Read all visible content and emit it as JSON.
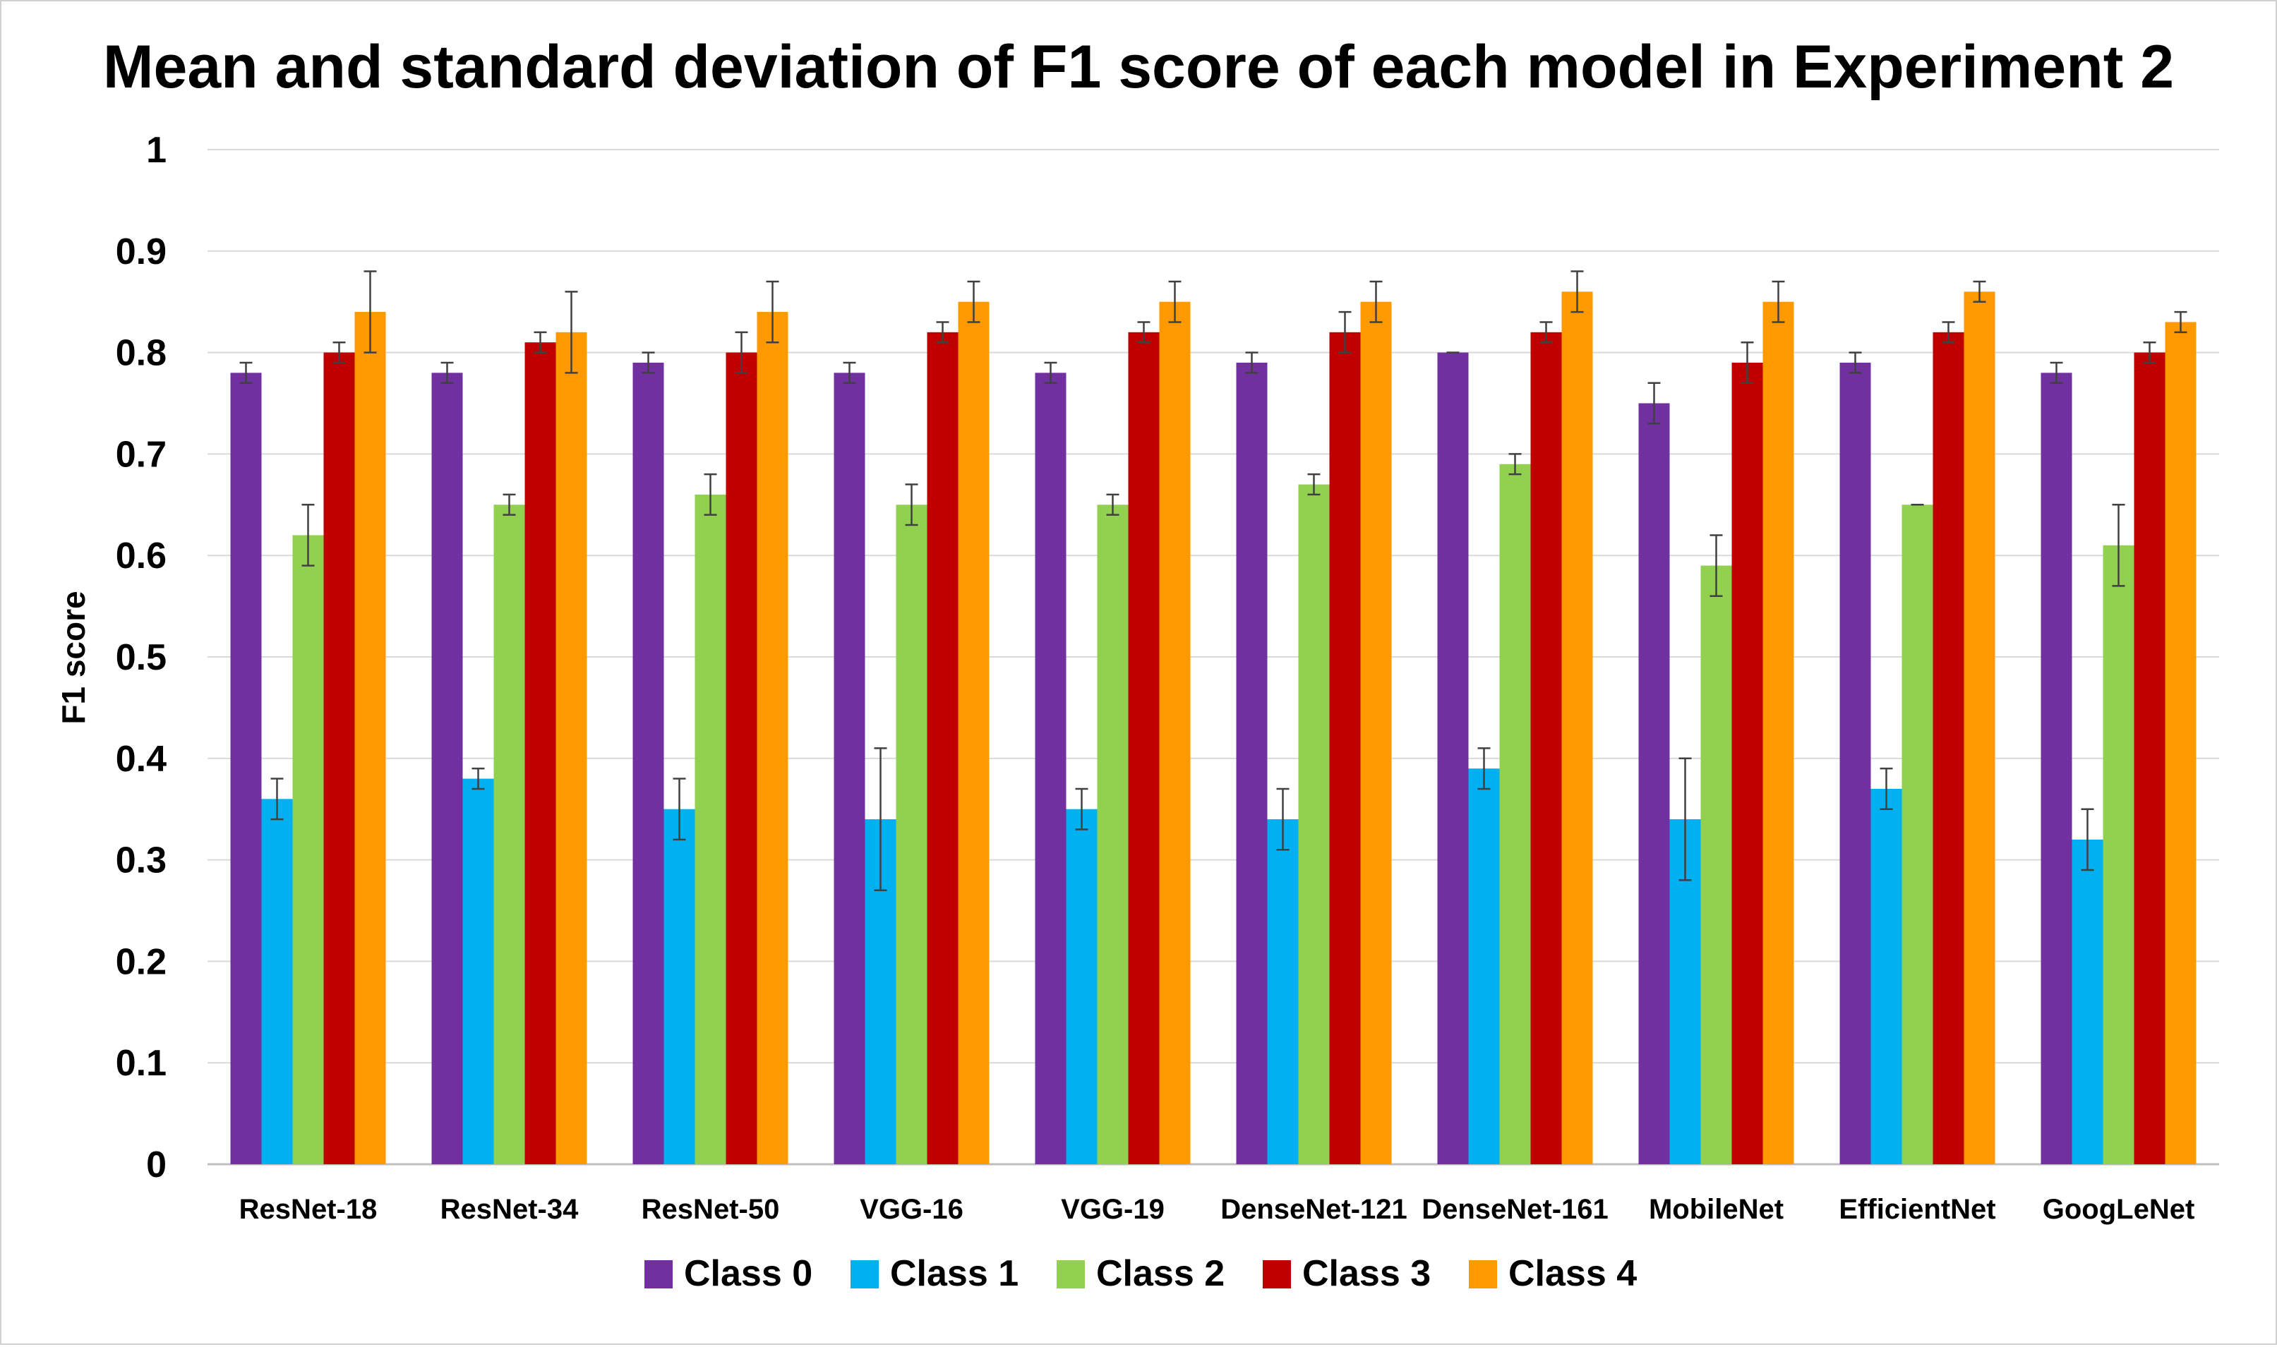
{
  "chart_data": {
    "type": "bar",
    "title": "Mean and standard deviation of F1 score of each model in Experiment 2",
    "xlabel": "",
    "ylabel": "F1 score",
    "ylim": [
      0,
      1
    ],
    "yticks": [
      0,
      0.1,
      0.2,
      0.3,
      0.4,
      0.5,
      0.6,
      0.7,
      0.8,
      0.9,
      1
    ],
    "ytick_labels": [
      "0",
      "0.1",
      "0.2",
      "0.3",
      "0.4",
      "0.5",
      "0.6",
      "0.7",
      "0.8",
      "0.9",
      "1"
    ],
    "grid": true,
    "legend_position": "bottom",
    "categories": [
      "ResNet-18",
      "ResNet-34",
      "ResNet-50",
      "VGG-16",
      "VGG-19",
      "DenseNet-121",
      "DenseNet-161",
      "MobileNet",
      "EfficientNet",
      "GoogLeNet"
    ],
    "series": [
      {
        "name": "Class 0",
        "color": "#7030A0",
        "values": [
          0.78,
          0.78,
          0.79,
          0.78,
          0.78,
          0.79,
          0.8,
          0.75,
          0.79,
          0.78
        ],
        "errors": [
          0.01,
          0.01,
          0.01,
          0.01,
          0.01,
          0.01,
          0.0,
          0.02,
          0.01,
          0.01
        ]
      },
      {
        "name": "Class 1",
        "color": "#00B0F0",
        "values": [
          0.36,
          0.38,
          0.35,
          0.34,
          0.35,
          0.34,
          0.39,
          0.34,
          0.37,
          0.32
        ],
        "errors": [
          0.02,
          0.01,
          0.03,
          0.07,
          0.02,
          0.03,
          0.02,
          0.06,
          0.02,
          0.03
        ]
      },
      {
        "name": "Class 2",
        "color": "#92D050",
        "values": [
          0.62,
          0.65,
          0.66,
          0.65,
          0.65,
          0.67,
          0.69,
          0.59,
          0.65,
          0.61
        ],
        "errors": [
          0.03,
          0.01,
          0.02,
          0.02,
          0.01,
          0.01,
          0.01,
          0.03,
          0.0,
          0.04
        ]
      },
      {
        "name": "Class 3",
        "color": "#C00000",
        "values": [
          0.8,
          0.81,
          0.8,
          0.82,
          0.82,
          0.82,
          0.82,
          0.79,
          0.82,
          0.8
        ],
        "errors": [
          0.01,
          0.01,
          0.02,
          0.01,
          0.01,
          0.02,
          0.01,
          0.02,
          0.01,
          0.01
        ]
      },
      {
        "name": "Class 4",
        "color": "#FF9900",
        "values": [
          0.84,
          0.82,
          0.84,
          0.85,
          0.85,
          0.85,
          0.86,
          0.85,
          0.86,
          0.83
        ],
        "errors": [
          0.04,
          0.04,
          0.03,
          0.02,
          0.02,
          0.02,
          0.02,
          0.02,
          0.01,
          0.01
        ]
      }
    ],
    "colors": {
      "gridline": "#d9d9d9",
      "axis": "#bfbfbf",
      "errorbar": "#404040"
    }
  }
}
